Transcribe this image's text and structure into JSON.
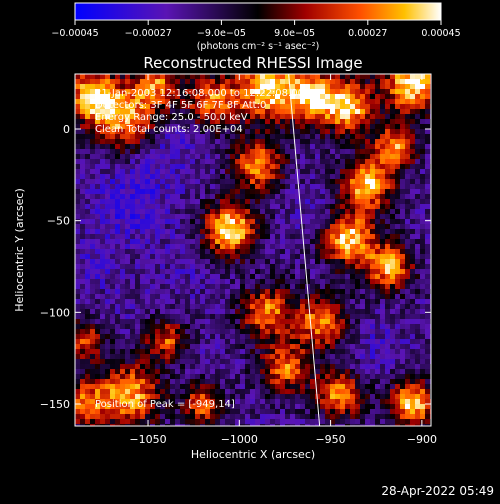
{
  "chart_data": {
    "type": "heatmap",
    "title": "Reconstructed RHESSI Image",
    "xlabel": "Heliocentric X (arcsec)",
    "ylabel": "Heliocentric Y (arcsec)",
    "xlim": [
      -1090,
      -895
    ],
    "ylim": [
      -162,
      30
    ],
    "xticks": [
      {
        "value": -1050,
        "label": "−1050"
      },
      {
        "value": -1000,
        "label": "−1000"
      },
      {
        "value": -950,
        "label": "−950"
      },
      {
        "value": -900,
        "label": "−900"
      }
    ],
    "yticks": [
      {
        "value": 0,
        "label": "0"
      },
      {
        "value": -50,
        "label": "−50"
      },
      {
        "value": -100,
        "label": "−100"
      },
      {
        "value": -150,
        "label": "−150"
      }
    ],
    "colorbar": {
      "range": [
        -0.00045,
        0.00045
      ],
      "unit_label": "(photons cm⁻² s⁻¹ asec⁻²)",
      "tick_labels": [
        {
          "value": -0.00045,
          "label": "−0.00045"
        },
        {
          "value": -0.00027,
          "label": "−0.00027"
        },
        {
          "value": -9e-05,
          "label": "−9.0e−05"
        },
        {
          "value": 9e-05,
          "label": "9.0e−05"
        },
        {
          "value": 0.00027,
          "label": "0.00027"
        },
        {
          "value": 0.00045,
          "label": "0.00045"
        }
      ]
    },
    "annotations": [
      "21-Jan-2003 12:16:08.000 to 12:22:08.000",
      "Detectors: 3F 4F 5F 6F 7F 8F Att:0",
      "Energy Range: 25.0 - 50.0 keV",
      "Clean    Total counts: 2.00E+04"
    ],
    "peak_label": "Position of Peak = [-949,14]",
    "limb_line": {
      "x1": -973,
      "y1": 30,
      "x2": -956,
      "y2": -162
    },
    "hot_spots": [
      {
        "x": -1080,
        "y": 18,
        "v": 0.00042,
        "r": 10
      },
      {
        "x": -1062,
        "y": 5,
        "v": 0.0003,
        "r": 12
      },
      {
        "x": -1045,
        "y": 24,
        "v": 0.00025,
        "r": 9
      },
      {
        "x": -1015,
        "y": 15,
        "v": 0.00028,
        "r": 10
      },
      {
        "x": -985,
        "y": 22,
        "v": 0.00043,
        "r": 12
      },
      {
        "x": -960,
        "y": 18,
        "v": 0.00035,
        "r": 10
      },
      {
        "x": -940,
        "y": 12,
        "v": 0.00038,
        "r": 10
      },
      {
        "x": -905,
        "y": 25,
        "v": 0.00045,
        "r": 11
      },
      {
        "x": -990,
        "y": -20,
        "v": 0.0003,
        "r": 10
      },
      {
        "x": -930,
        "y": -30,
        "v": 0.0004,
        "r": 10
      },
      {
        "x": -915,
        "y": -10,
        "v": 0.00032,
        "r": 8
      },
      {
        "x": -1005,
        "y": -55,
        "v": 0.00045,
        "r": 10
      },
      {
        "x": -940,
        "y": -60,
        "v": 0.0004,
        "r": 10
      },
      {
        "x": -918,
        "y": -75,
        "v": 0.00035,
        "r": 9
      },
      {
        "x": -985,
        "y": -100,
        "v": 0.00028,
        "r": 10
      },
      {
        "x": -955,
        "y": -105,
        "v": 0.0003,
        "r": 10
      },
      {
        "x": -1040,
        "y": -115,
        "v": 0.00022,
        "r": 8
      },
      {
        "x": -1085,
        "y": -115,
        "v": 0.0002,
        "r": 8
      },
      {
        "x": -1060,
        "y": -145,
        "v": 0.00035,
        "r": 12
      },
      {
        "x": -1085,
        "y": -150,
        "v": 0.00025,
        "r": 9
      },
      {
        "x": -975,
        "y": -130,
        "v": 0.00026,
        "r": 10
      },
      {
        "x": -945,
        "y": -145,
        "v": 0.0003,
        "r": 9
      },
      {
        "x": -905,
        "y": -150,
        "v": 0.0004,
        "r": 9
      },
      {
        "x": -1020,
        "y": -150,
        "v": 0.00024,
        "r": 8
      }
    ],
    "cold_spots": [
      {
        "x": -1060,
        "y": -40,
        "v": -0.00032,
        "r": 14
      },
      {
        "x": -1040,
        "y": -10,
        "v": -0.00028,
        "r": 12
      },
      {
        "x": -1030,
        "y": -75,
        "v": -0.00022,
        "r": 12
      },
      {
        "x": -1080,
        "y": -75,
        "v": -0.00025,
        "r": 10
      },
      {
        "x": -1060,
        "y": -100,
        "v": -0.0002,
        "r": 10
      },
      {
        "x": -1015,
        "y": -130,
        "v": -0.0002,
        "r": 9
      },
      {
        "x": -960,
        "y": -45,
        "v": -0.00022,
        "r": 10
      },
      {
        "x": -925,
        "y": -120,
        "v": -0.00025,
        "r": 10
      },
      {
        "x": -975,
        "y": -75,
        "v": -0.00015,
        "r": 9
      }
    ]
  },
  "footer": {
    "timestamp": "28-Apr-2022 05:49"
  }
}
